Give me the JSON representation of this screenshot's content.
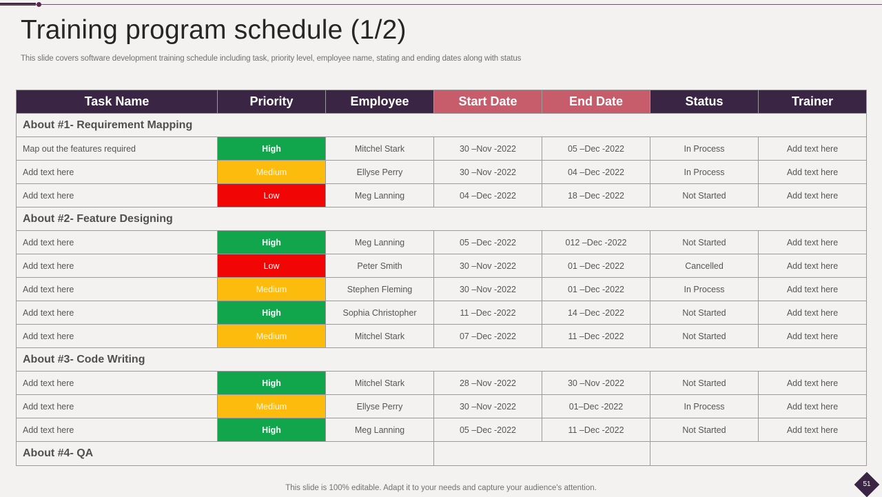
{
  "title": "Training program schedule (1/2)",
  "subtitle": "This slide covers software development training schedule including task, priority level, employee name, stating and ending dates along with status",
  "table": {
    "headers": [
      "Task Name",
      "Priority",
      "Employee",
      "Start Date",
      "End Date",
      "Status",
      "Trainer"
    ],
    "accent_headers": [
      "Start Date",
      "End Date"
    ],
    "sections": [
      {
        "title": "About #1- Requirement Mapping",
        "rows": [
          {
            "task": "Map out the features  required",
            "priority": "High",
            "employee": "Mitchel Stark",
            "start": "30 –Nov -2022",
            "end": "05 –Dec -2022",
            "status": "In Process",
            "trainer": "Add text here"
          },
          {
            "task": "Add text here",
            "priority": "Medium",
            "employee": "Ellyse Perry",
            "start": "30 –Nov -2022",
            "end": "04 –Dec -2022",
            "status": "In Process",
            "trainer": "Add text here"
          },
          {
            "task": "Add text here",
            "priority": "Low",
            "employee": "Meg Lanning",
            "start": "04 –Dec -2022",
            "end": "18 –Dec -2022",
            "status": "Not Started",
            "trainer": "Add text here"
          }
        ]
      },
      {
        "title": "About #2- Feature Designing",
        "rows": [
          {
            "task": "Add text here",
            "priority": "High",
            "employee": "Meg Lanning",
            "start": "05 –Dec -2022",
            "end": "012 –Dec -2022",
            "status": "Not Started",
            "trainer": "Add text here"
          },
          {
            "task": "Add text here",
            "priority": "Low",
            "employee": "Peter Smith",
            "start": "30 –Nov -2022",
            "end": "01 –Dec -2022",
            "status": "Cancelled",
            "trainer": "Add text here"
          },
          {
            "task": "Add text here",
            "priority": "Medium",
            "employee": "Stephen Fleming",
            "start": "30 –Nov -2022",
            "end": "01 –Dec -2022",
            "status": "In Process",
            "trainer": "Add text here"
          },
          {
            "task": "Add text here",
            "priority": "High",
            "employee": "Sophia Christopher",
            "start": "11 –Dec -2022",
            "end": "14 –Dec -2022",
            "status": "Not Started",
            "trainer": "Add text here"
          },
          {
            "task": "Add text here",
            "priority": "Medium",
            "employee": "Mitchel Stark",
            "start": "07 –Dec -2022",
            "end": "11 –Dec -2022",
            "status": "Not Started",
            "trainer": "Add text here"
          }
        ]
      },
      {
        "title": "About #3- Code Writing",
        "rows": [
          {
            "task": "Add text here",
            "priority": "High",
            "employee": "Mitchel Stark",
            "start": "28 –Nov -2022",
            "end": "30 –Nov -2022",
            "status": "Not Started",
            "trainer": "Add text here"
          },
          {
            "task": "Add text here",
            "priority": "Medium",
            "employee": "Ellyse Perry",
            "start": "30 –Nov -2022",
            "end": "01–Dec -2022",
            "status": "In Process",
            "trainer": "Add text here"
          },
          {
            "task": "Add text here",
            "priority": "High",
            "employee": "Meg Lanning",
            "start": "05 –Dec -2022",
            "end": "11 –Dec -2022",
            "status": "Not Started",
            "trainer": "Add text here"
          }
        ]
      },
      {
        "title": "About #4- QA",
        "rows": []
      }
    ]
  },
  "colors": {
    "header_bg": "#3b2545",
    "header_accent_bg": "#c75c6a",
    "priority_high": "#11a64b",
    "priority_medium": "#fdbb0d",
    "priority_low": "#f20505"
  },
  "footer": "This slide is 100% editable. Adapt it to your needs and capture your audience's attention.",
  "page_number": "51"
}
